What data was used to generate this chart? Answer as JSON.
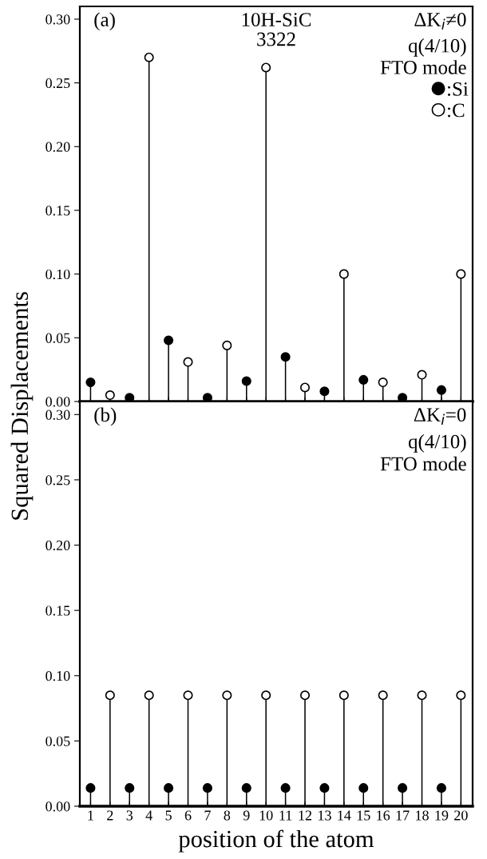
{
  "chart_data": [
    {
      "type": "lollipop",
      "title": "10H-SiC\n3322",
      "ylabel": "Squared Displacements",
      "annotations": [
        "(a)",
        "ΔK$_{i}$≠0",
        "q(4/10)",
        "FTO mode"
      ],
      "series": [
        {
          "name": ":Si",
          "color": "#000000",
          "x": [
            1,
            3,
            5,
            7,
            9,
            11,
            13,
            15,
            17,
            19
          ],
          "values": [
            0.015,
            0.003,
            0.048,
            0.003,
            0.016,
            0.035,
            0.008,
            0.017,
            0.003,
            0.009
          ]
        },
        {
          "name": ":C",
          "color": "#ffffff",
          "x": [
            2,
            4,
            6,
            8,
            10,
            12,
            14,
            16,
            18,
            20
          ],
          "values": [
            0.005,
            0.27,
            0.031,
            0.044,
            0.262,
            0.011,
            0.1,
            0.015,
            0.021,
            0.1
          ]
        }
      ],
      "marker": "circle",
      "legend": "top right",
      "tick_labels": "y",
      "xlim": [
        0.45,
        20.6
      ],
      "xticks": [
        1,
        2,
        3,
        4,
        5,
        6,
        7,
        8,
        9,
        10,
        11,
        12,
        13,
        14,
        15,
        16,
        17,
        18,
        19,
        20
      ],
      "ylim": [
        0,
        0.31
      ],
      "yticks": [
        {
          "value": 0,
          "label": "0.00"
        },
        {
          "value": 0.05,
          "label": "0.05"
        },
        {
          "value": 0.1,
          "label": "0.10"
        },
        {
          "value": 0.15,
          "label": "0.15"
        },
        {
          "value": 0.2,
          "label": "0.20"
        },
        {
          "value": 0.25,
          "label": "0.25"
        },
        {
          "value": 0.3,
          "label": "0.30"
        }
      ]
    },
    {
      "type": "lollipop",
      "xlabel": "position of the atom",
      "annotations": [
        "(b)",
        "ΔK$_{i}$=0",
        "q(4/10)",
        "FTO mode"
      ],
      "series": [
        {
          "color": "#000000",
          "x": [
            1,
            3,
            5,
            7,
            9,
            11,
            13,
            15,
            17,
            19
          ],
          "values": [
            0.014,
            0.014,
            0.014,
            0.014,
            0.014,
            0.014,
            0.014,
            0.014,
            0.014,
            0.014
          ]
        },
        {
          "color": "#ffffff",
          "x": [
            2,
            4,
            6,
            8,
            10,
            12,
            14,
            16,
            18,
            20
          ],
          "values": [
            0.085,
            0.085,
            0.085,
            0.085,
            0.085,
            0.085,
            0.085,
            0.085,
            0.085,
            0.085
          ]
        }
      ],
      "marker": "circle",
      "xlim": [
        0.45,
        20.6
      ],
      "xticks": [
        1,
        2,
        3,
        4,
        5,
        6,
        7,
        8,
        9,
        10,
        11,
        12,
        13,
        14,
        15,
        16,
        17,
        18,
        19,
        20
      ],
      "ylim": [
        0,
        0.31
      ],
      "yticks": [
        {
          "value": 0,
          "label": "0.00"
        },
        {
          "value": 0.05,
          "label": "0.05"
        },
        {
          "value": 0.1,
          "label": "0.10"
        },
        {
          "value": 0.15,
          "label": "0.15"
        },
        {
          "value": 0.2,
          "label": "0.20"
        },
        {
          "value": 0.25,
          "label": "0.25"
        },
        {
          "value": 0.3,
          "label": "0.30"
        }
      ]
    }
  ]
}
